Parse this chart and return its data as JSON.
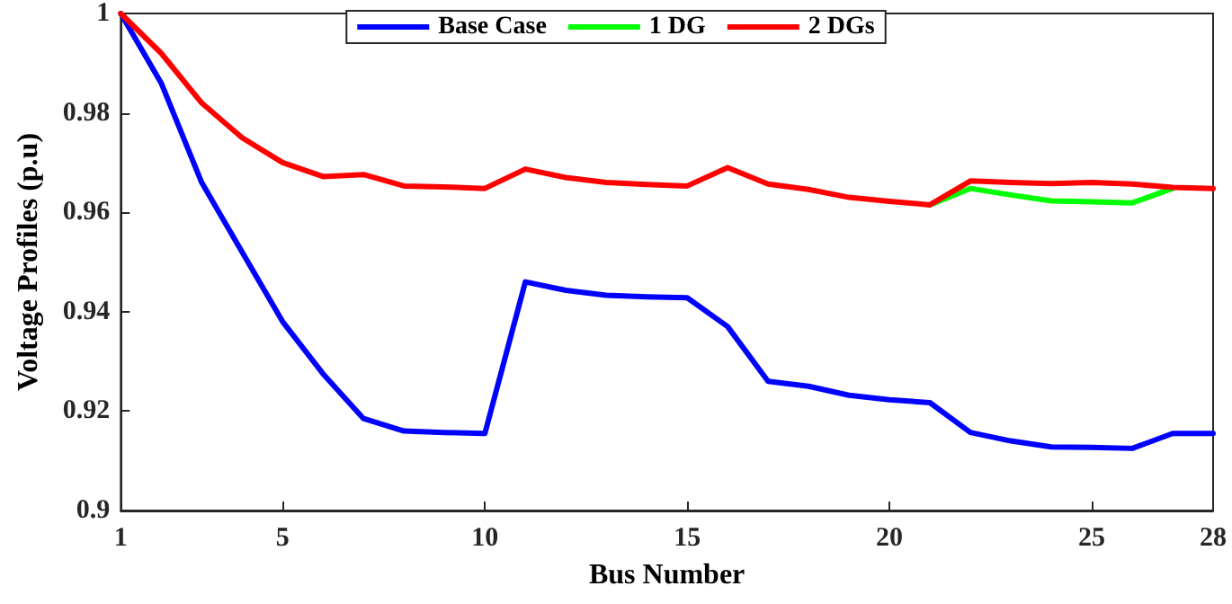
{
  "chart_data": {
    "type": "line",
    "xlabel": "Bus Number",
    "ylabel": "Voltage Profiles (p.u)",
    "x": [
      1,
      2,
      3,
      4,
      5,
      6,
      7,
      8,
      9,
      10,
      11,
      12,
      13,
      14,
      15,
      16,
      17,
      18,
      19,
      20,
      21,
      22,
      23,
      24,
      25,
      26,
      27,
      28
    ],
    "series": [
      {
        "name": "Base Case",
        "color": "#0000ff",
        "values": [
          1,
          0.986,
          0.966,
          0.952,
          0.938,
          0.9275,
          0.9185,
          0.916,
          0.9157,
          0.9155,
          0.946,
          0.9443,
          0.9433,
          0.943,
          0.9428,
          0.937,
          0.926,
          0.925,
          0.9232,
          0.9223,
          0.9217,
          0.9157,
          0.914,
          0.9128,
          0.9127,
          0.9125,
          0.9155,
          0.9155
        ]
      },
      {
        "name": "1 DG",
        "color": "#00ff00",
        "values": [
          null,
          null,
          null,
          null,
          null,
          null,
          null,
          null,
          null,
          null,
          null,
          null,
          null,
          null,
          null,
          null,
          null,
          null,
          null,
          null,
          0.9615,
          0.9648,
          0.9635,
          0.9623,
          0.9621,
          0.9619,
          0.9648,
          null
        ]
      },
      {
        "name": "2 DGs",
        "color": "#ff0000",
        "values": [
          1,
          0.992,
          0.982,
          0.975,
          0.97,
          0.9672,
          0.9676,
          0.9653,
          0.9651,
          0.9648,
          0.9687,
          0.967,
          0.966,
          0.9656,
          0.9653,
          0.969,
          0.9657,
          0.9646,
          0.963,
          0.9622,
          0.9615,
          0.9663,
          0.966,
          0.9658,
          0.966,
          0.9657,
          0.965,
          0.9648
        ]
      }
    ],
    "xlim": [
      1,
      28
    ],
    "xticks": [
      1,
      5,
      10,
      15,
      20,
      25,
      28
    ],
    "ylim": [
      0.9,
      1
    ],
    "yticks": [
      0.9,
      0.92,
      0.94,
      0.96,
      0.98,
      1
    ],
    "grid": false,
    "legend": "top",
    "marker": "none",
    "line_style": "solid"
  }
}
